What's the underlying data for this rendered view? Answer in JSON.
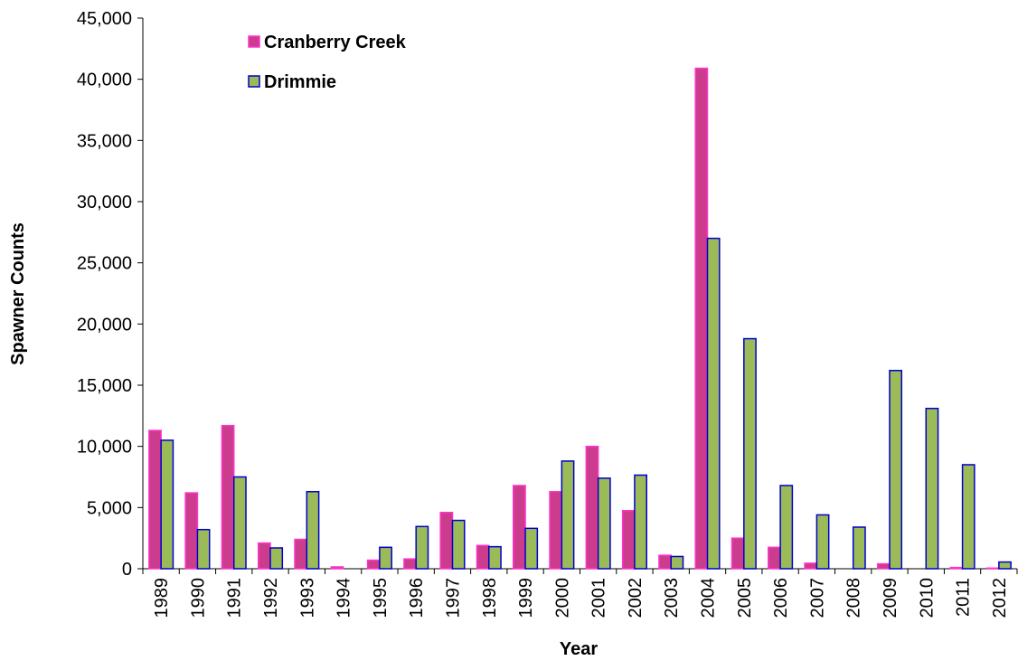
{
  "chart_data": {
    "type": "bar",
    "x_label": "Year",
    "y_label": "Spawner Counts",
    "categories": [
      "1989",
      "1990",
      "1991",
      "1992",
      "1993",
      "1994",
      "1995",
      "1996",
      "1997",
      "1998",
      "1999",
      "2000",
      "2001",
      "2002",
      "2003",
      "2004",
      "2005",
      "2006",
      "2007",
      "2008",
      "2009",
      "2010",
      "2011",
      "2012"
    ],
    "series": [
      {
        "name": "Cranberry Creek",
        "color": "#cc3c8c",
        "edge": "#ff33cc",
        "values": [
          11300,
          6200,
          11700,
          2100,
          2400,
          150,
          700,
          800,
          4600,
          1900,
          6800,
          6300,
          10000,
          4750,
          1100,
          40900,
          2500,
          1750,
          450,
          0,
          400,
          0,
          100,
          50
        ]
      },
      {
        "name": "Drimmie",
        "color": "#9bbb59",
        "edge": "#0000cc",
        "values": [
          10500,
          3200,
          7500,
          1700,
          6300,
          0,
          1750,
          3450,
          3950,
          1800,
          3300,
          8800,
          7400,
          7650,
          1000,
          27000,
          18800,
          6800,
          4400,
          3400,
          16200,
          13100,
          8500,
          550
        ]
      }
    ],
    "ylim": [
      0,
      45000
    ],
    "yticks": [
      0,
      {
        "value": 5000,
        "label": "5,000"
      },
      {
        "value": 10000,
        "label": "10,000"
      },
      {
        "value": 15000,
        "label": "15,000"
      },
      {
        "value": 20000,
        "label": "20,000"
      },
      {
        "value": 25000,
        "label": "25,000"
      },
      {
        "value": 30000,
        "label": "30,000"
      },
      {
        "value": 35000,
        "label": "35,000"
      },
      {
        "value": 40000,
        "label": "40,000"
      },
      {
        "value": 45000,
        "label": "45,000"
      }
    ],
    "legend": "top-left",
    "grid": false
  }
}
